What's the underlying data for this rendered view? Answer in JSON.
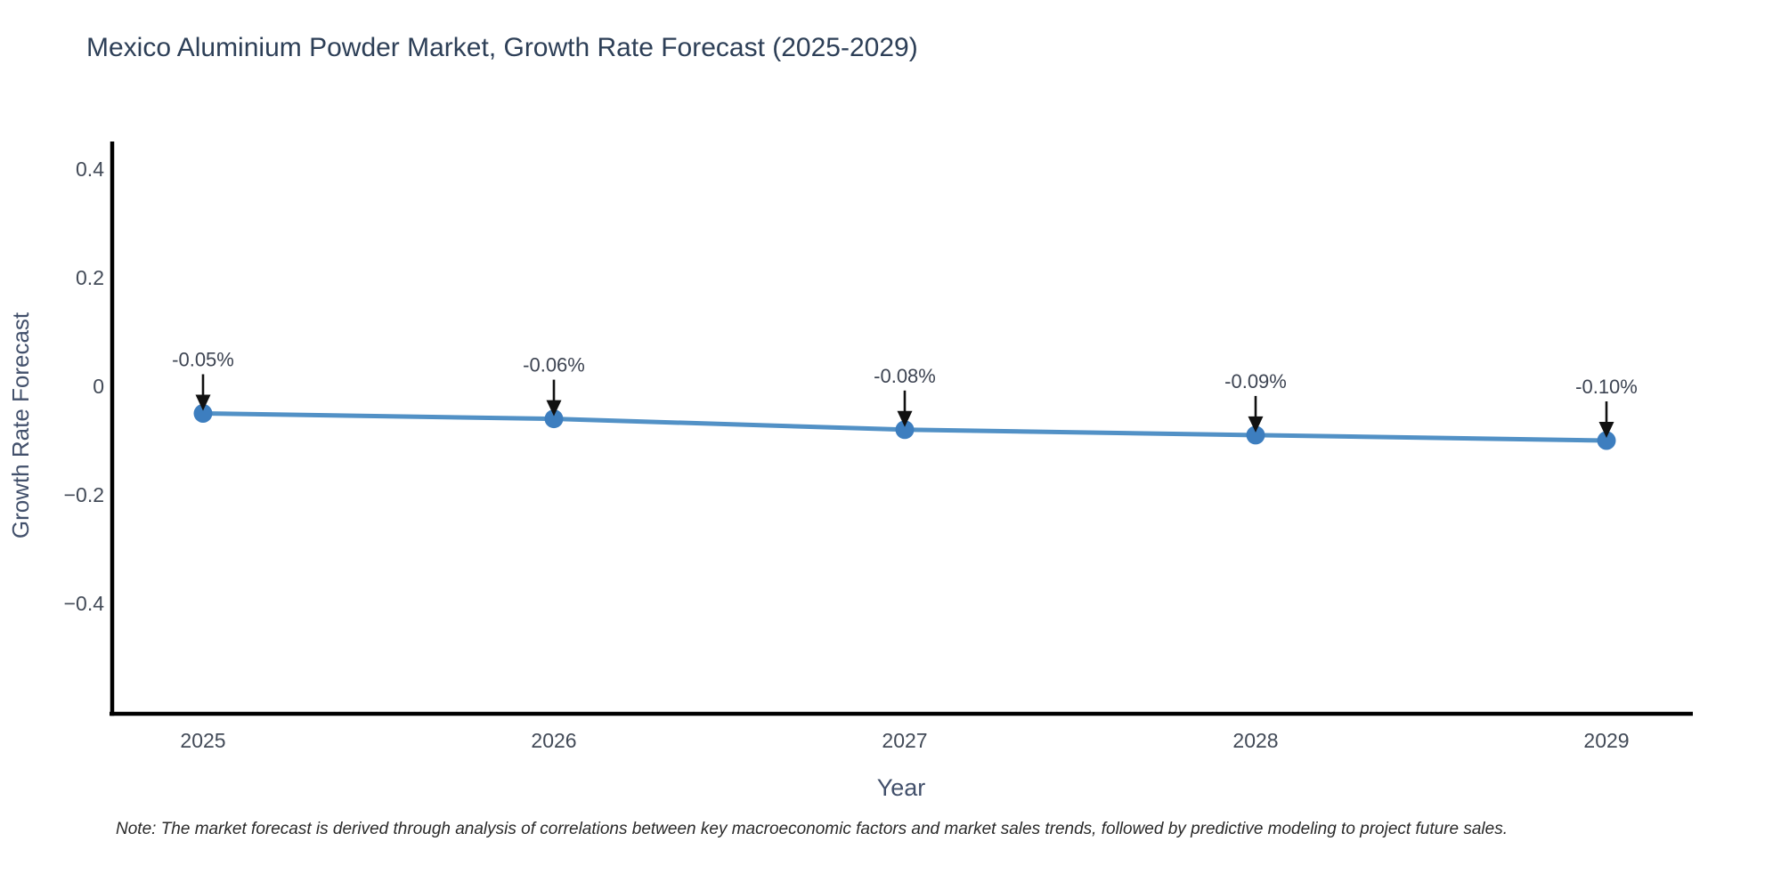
{
  "chart_data": {
    "type": "line",
    "title": "Mexico Aluminium Powder Market, Growth Rate Forecast (2025-2029)",
    "xlabel": "Year",
    "ylabel": "Growth Rate Forecast",
    "x": [
      2025,
      2026,
      2027,
      2028,
      2029
    ],
    "series": [
      {
        "name": "Growth Rate Forecast",
        "values": [
          -0.05,
          -0.06,
          -0.08,
          -0.09,
          -0.1
        ]
      }
    ],
    "point_labels": [
      "-0.05%",
      "-0.06%",
      "-0.08%",
      "-0.09%",
      "-0.10%"
    ],
    "yticks": [
      0.4,
      0.2,
      0,
      -0.2,
      -0.4
    ],
    "ytick_labels": [
      "0.4",
      "0.2",
      "0",
      "−0.2",
      "−0.4"
    ],
    "xtick_labels": [
      "2025",
      "2026",
      "2027",
      "2028",
      "2029"
    ],
    "ylim": [
      -0.6,
      0.45
    ],
    "grid": false,
    "legend_position": "none",
    "note": "Note: The market forecast is derived through analysis of correlations between key macroeconomic factors and market sales trends, followed by predictive modeling to project future sales.",
    "colors": {
      "line": "#5291c6",
      "marker": "#3d7ebf",
      "axis": "#000000",
      "arrow": "#111111",
      "title_text": "#2d3f57",
      "tick_text": "#424a57",
      "axis_label_text": "#42506b",
      "annotation_text": "#3d4452",
      "background": "#ffffff"
    }
  }
}
